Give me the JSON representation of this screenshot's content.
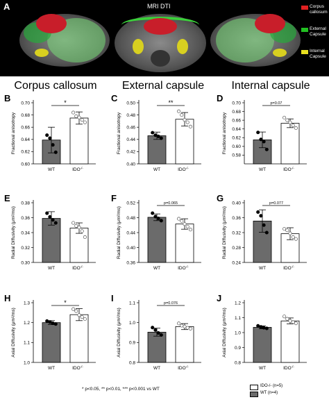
{
  "banner": {
    "letter": "A",
    "title": "MRI DTI",
    "legend": [
      {
        "label": "Corpus callosum",
        "lines": [
          "Corpus",
          "callosum"
        ],
        "color": "#e02020"
      },
      {
        "label": "External Capsule",
        "lines": [
          "External",
          "Capsule"
        ],
        "color": "#22c022"
      },
      {
        "label": "Internal Capsule",
        "lines": [
          "Internal",
          "Capsule"
        ],
        "color": "#e8e020"
      }
    ]
  },
  "columns": [
    "Corpus callosum",
    "External capsule",
    "Internal capsule"
  ],
  "groups": [
    "WT",
    "IDO-/-"
  ],
  "colors": {
    "wt": "#6b6b6b",
    "ido": "#ffffff"
  },
  "chart_data": [
    {
      "type": "bar",
      "letter": "B",
      "ylabel": "Fractional anisotropy",
      "ylim": [
        0.6,
        0.7
      ],
      "ticks": [
        0.6,
        0.62,
        0.64,
        0.66,
        0.68,
        0.7
      ],
      "tick_labels": [
        "0.60",
        "0.62",
        "0.64",
        "0.66",
        "0.68",
        "0.70"
      ],
      "categories": [
        "WT",
        "IDO-/-"
      ],
      "values": [
        0.639,
        0.675
      ],
      "errors": [
        0.021,
        0.01
      ],
      "points": [
        [
          0.647,
          0.642,
          0.631,
          0.619
        ],
        [
          0.684,
          0.678,
          0.676,
          0.672,
          0.668
        ]
      ],
      "sig": "*"
    },
    {
      "type": "bar",
      "letter": "C",
      "ylabel": "Fractional anisotropy",
      "ylim": [
        0.4,
        0.5
      ],
      "ticks": [
        0.4,
        0.42,
        0.44,
        0.46,
        0.48,
        0.5
      ],
      "tick_labels": [
        "0.40",
        "0.42",
        "0.44",
        "0.46",
        "0.48",
        "0.50"
      ],
      "categories": [
        "WT",
        "IDO-/-"
      ],
      "values": [
        0.446,
        0.473
      ],
      "errors": [
        0.006,
        0.011
      ],
      "points": [
        [
          0.451,
          0.447,
          0.445,
          0.442
        ],
        [
          0.486,
          0.48,
          0.472,
          0.468,
          0.461
        ]
      ],
      "sig": "**"
    },
    {
      "type": "bar",
      "letter": "D",
      "ylabel": "Fractional anisotropy",
      "ylim": [
        0.56,
        0.7
      ],
      "ticks": [
        0.58,
        0.6,
        0.62,
        0.64,
        0.66,
        0.68,
        0.7
      ],
      "tick_labels": [
        "0.58",
        "0.60",
        "0.62",
        "0.64",
        "0.66",
        "0.68",
        "0.70"
      ],
      "categories": [
        "WT",
        "IDO-/-"
      ],
      "values": [
        0.615,
        0.653
      ],
      "errors": [
        0.018,
        0.01
      ],
      "points": [
        [
          0.632,
          0.616,
          0.611,
          0.593
        ],
        [
          0.666,
          0.66,
          0.655,
          0.648,
          0.642
        ]
      ],
      "sig": "p=0.07"
    },
    {
      "type": "bar",
      "letter": "E",
      "ylabel": "Radial Diffusivity (μm²/ms)",
      "ylim": [
        0.3,
        0.38
      ],
      "ticks": [
        0.3,
        0.32,
        0.34,
        0.36,
        0.38
      ],
      "tick_labels": [
        "0.30",
        "0.32",
        "0.34",
        "0.36",
        "0.38"
      ],
      "categories": [
        "WT",
        "IDO-/-"
      ],
      "values": [
        0.359,
        0.346
      ],
      "errors": [
        0.009,
        0.007
      ],
      "points": [
        [
          0.366,
          0.361,
          0.357,
          0.353
        ],
        [
          0.353,
          0.349,
          0.347,
          0.342,
          0.334
        ]
      ],
      "sig": ""
    },
    {
      "type": "bar",
      "letter": "F",
      "ylabel": "Radial Diffusivity (μm²/ms)",
      "ylim": [
        0.36,
        0.52
      ],
      "ticks": [
        0.36,
        0.4,
        0.44,
        0.48,
        0.52
      ],
      "tick_labels": [
        "0.36",
        "0.40",
        "0.44",
        "0.48",
        "0.52"
      ],
      "categories": [
        "WT",
        "IDO-/-"
      ],
      "values": [
        0.481,
        0.463
      ],
      "errors": [
        0.009,
        0.014
      ],
      "points": [
        [
          0.492,
          0.483,
          0.478,
          0.472
        ],
        [
          0.477,
          0.471,
          0.463,
          0.456,
          0.448
        ]
      ],
      "sig": "p=0.065"
    },
    {
      "type": "bar",
      "letter": "G",
      "ylabel": "Radial Diffusivity (μm²/ms)",
      "ylim": [
        0.24,
        0.4
      ],
      "ticks": [
        0.24,
        0.28,
        0.32,
        0.36,
        0.4
      ],
      "tick_labels": [
        "0.24",
        "0.28",
        "0.32",
        "0.36",
        "0.40"
      ],
      "categories": [
        "WT",
        "IDO-/-"
      ],
      "values": [
        0.351,
        0.317
      ],
      "errors": [
        0.03,
        0.016
      ],
      "points": [
        [
          0.375,
          0.365,
          0.34,
          0.32
        ],
        [
          0.33,
          0.326,
          0.318,
          0.308,
          0.303
        ]
      ],
      "sig": "p=0.077"
    },
    {
      "type": "bar",
      "letter": "H",
      "ylabel": "Axial Diffusivity (μm²/ms)",
      "ylim": [
        1.0,
        1.3
      ],
      "ticks": [
        1.0,
        1.1,
        1.2,
        1.3
      ],
      "tick_labels": [
        "1.0",
        "1.1",
        "1.2",
        "1.3"
      ],
      "categories": [
        "WT",
        "IDO-/-"
      ],
      "values": [
        1.2,
        1.24
      ],
      "errors": [
        0.01,
        0.03
      ],
      "points": [
        [
          1.208,
          1.203,
          1.197,
          1.193
        ],
        [
          1.268,
          1.258,
          1.238,
          1.228,
          1.218
        ]
      ],
      "sig": "*"
    },
    {
      "type": "bar",
      "letter": "I",
      "ylabel": "Axial Diffusivity (μm²/ms)",
      "ylim": [
        0.8,
        1.1
      ],
      "ticks": [
        0.8,
        0.9,
        1.0,
        1.1
      ],
      "tick_labels": [
        "0.8",
        "0.9",
        "1.0",
        "1.1"
      ],
      "categories": [
        "WT",
        "IDO-/-"
      ],
      "values": [
        0.952,
        0.98
      ],
      "errors": [
        0.02,
        0.015
      ],
      "points": [
        [
          0.975,
          0.963,
          0.948,
          0.938
        ],
        [
          0.996,
          0.985,
          0.98,
          0.974,
          0.97
        ]
      ],
      "sig": "p=0.076"
    },
    {
      "type": "bar",
      "letter": "J",
      "ylabel": "Axial Diffusivity (μm²/ms)",
      "ylim": [
        0.8,
        1.2
      ],
      "ticks": [
        0.8,
        0.9,
        1.0,
        1.1,
        1.2
      ],
      "tick_labels": [
        "0.8",
        "0.9",
        "1.0",
        "1.1",
        "1.2"
      ],
      "categories": [
        "WT",
        "IDO-/-"
      ],
      "values": [
        1.035,
        1.078
      ],
      "errors": [
        0.01,
        0.02
      ],
      "points": [
        [
          1.045,
          1.038,
          1.032,
          1.028
        ],
        [
          1.108,
          1.092,
          1.078,
          1.07,
          1.062
        ]
      ],
      "sig": ""
    }
  ],
  "footnote": "* p<0.05, ** p<0.01, *** p<0.001 vs WT",
  "legend": [
    {
      "label": "IDO-/- (n=5)",
      "color": "#ffffff"
    },
    {
      "label": "WT (n=4)",
      "color": "#6b6b6b"
    }
  ]
}
